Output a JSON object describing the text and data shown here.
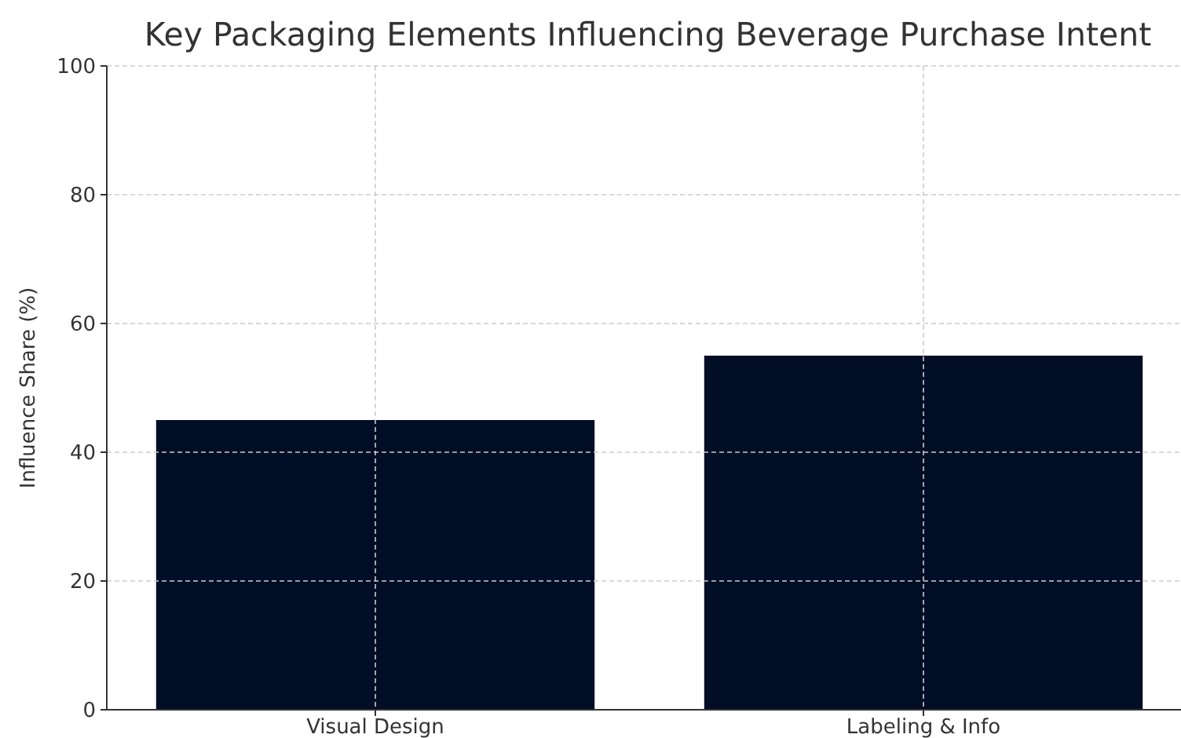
{
  "chart_data": {
    "type": "bar",
    "title": "Key Packaging Elements Influencing Beverage Purchase Intent",
    "ylabel": "Influence Share (%)",
    "categories": [
      "Visual Design",
      "Labeling & Info"
    ],
    "values": [
      45,
      55
    ],
    "color": "#020d26",
    "ylim": [
      0,
      100
    ],
    "yticks": [
      0,
      20,
      40,
      60,
      80,
      100
    ],
    "grid": true
  }
}
